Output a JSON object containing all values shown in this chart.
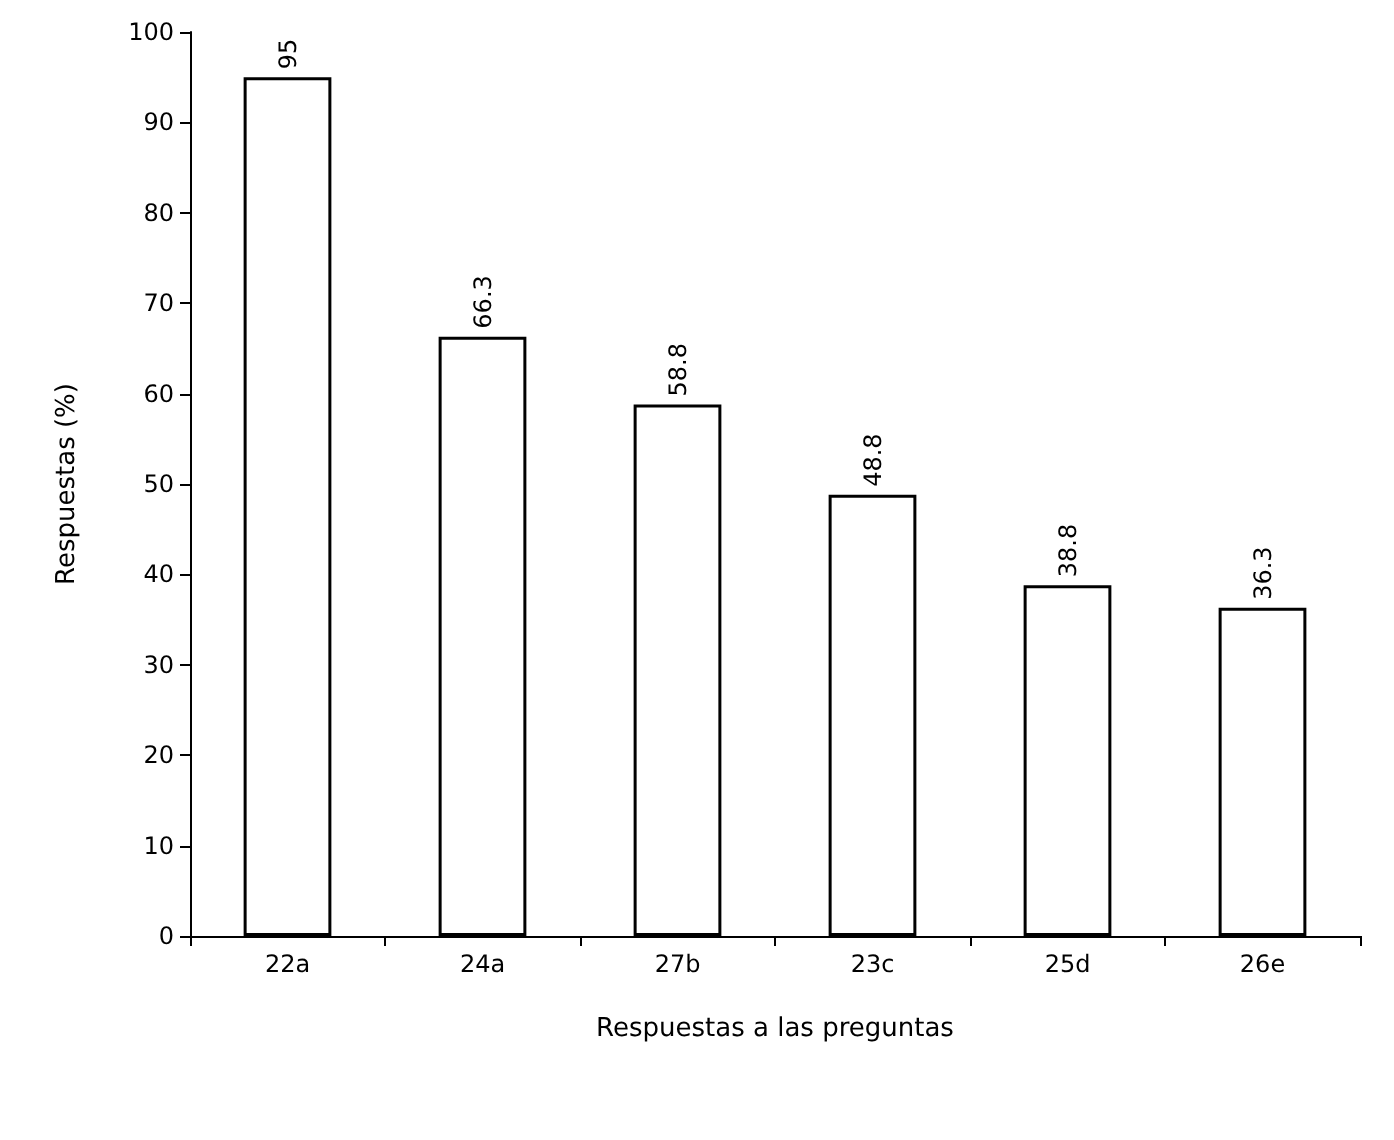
{
  "chart_data": {
    "type": "bar",
    "xlabel": "Respuestas a las preguntas",
    "ylabel": "Respuestas (%)",
    "categories": [
      "22a",
      "24a",
      "27b",
      "23c",
      "25d",
      "26e"
    ],
    "values": [
      95,
      66.3,
      58.8,
      48.8,
      38.8,
      36.3
    ],
    "color": "#ffffff",
    "ylim": [
      0,
      100
    ],
    "yticks": [
      0,
      10,
      20,
      30,
      40,
      50,
      60,
      70,
      80,
      90,
      100
    ],
    "grid": false,
    "data_labels": true
  }
}
